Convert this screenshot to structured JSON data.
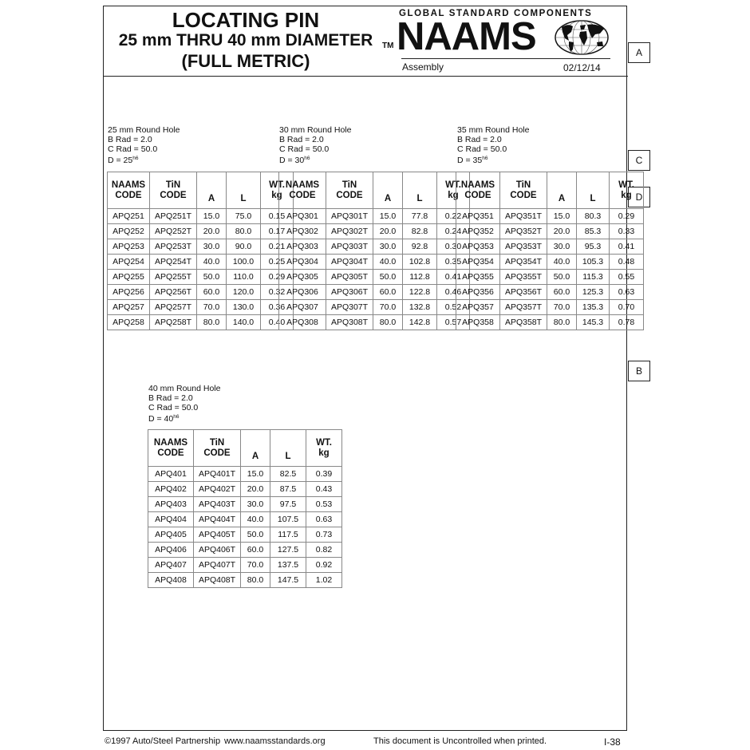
{
  "header": {
    "title_line1": "LOCATING PIN",
    "title_line2": "25 mm THRU 40 mm DIAMETER",
    "title_line3": "(FULL METRIC)",
    "trademark": "TM",
    "brand_tagline": "GLOBAL STANDARD COMPONENTS",
    "brand": "NAAMS",
    "category": "Assembly",
    "date": "02/12/14"
  },
  "side_tabs": {
    "a": "A",
    "c": "C",
    "d": "D",
    "b": "B"
  },
  "columns": [
    {
      "line1": "NAAMS",
      "line2": "CODE"
    },
    {
      "line1": "TiN",
      "line2": "CODE"
    },
    {
      "line1": "",
      "line2": "A"
    },
    {
      "line1": "",
      "line2": "L"
    },
    {
      "line1": "WT.",
      "line2": "kg"
    }
  ],
  "tables": [
    {
      "hole": "25 mm Round Hole",
      "b_rad": "B Rad = 2.0",
      "c_rad": "C Rad = 50.0",
      "d": "D = 25",
      "tol": "h6",
      "rows": [
        [
          "APQ251",
          "APQ251T",
          "15.0",
          "75.0",
          "0.15"
        ],
        [
          "APQ252",
          "APQ252T",
          "20.0",
          "80.0",
          "0.17"
        ],
        [
          "APQ253",
          "APQ253T",
          "30.0",
          "90.0",
          "0.21"
        ],
        [
          "APQ254",
          "APQ254T",
          "40.0",
          "100.0",
          "0.25"
        ],
        [
          "APQ255",
          "APQ255T",
          "50.0",
          "110.0",
          "0.29"
        ],
        [
          "APQ256",
          "APQ256T",
          "60.0",
          "120.0",
          "0.32"
        ],
        [
          "APQ257",
          "APQ257T",
          "70.0",
          "130.0",
          "0.36"
        ],
        [
          "APQ258",
          "APQ258T",
          "80.0",
          "140.0",
          "0.40"
        ]
      ]
    },
    {
      "hole": "30 mm Round Hole",
      "b_rad": "B Rad = 2.0",
      "c_rad": "C Rad = 50.0",
      "d": "D = 30",
      "tol": "h6",
      "rows": [
        [
          "APQ301",
          "APQ301T",
          "15.0",
          "77.8",
          "0.22"
        ],
        [
          "APQ302",
          "APQ302T",
          "20.0",
          "82.8",
          "0.24"
        ],
        [
          "APQ303",
          "APQ303T",
          "30.0",
          "92.8",
          "0.30"
        ],
        [
          "APQ304",
          "APQ304T",
          "40.0",
          "102.8",
          "0.35"
        ],
        [
          "APQ305",
          "APQ305T",
          "50.0",
          "112.8",
          "0.41"
        ],
        [
          "APQ306",
          "APQ306T",
          "60.0",
          "122.8",
          "0.46"
        ],
        [
          "APQ307",
          "APQ307T",
          "70.0",
          "132.8",
          "0.52"
        ],
        [
          "APQ308",
          "APQ308T",
          "80.0",
          "142.8",
          "0.57"
        ]
      ]
    },
    {
      "hole": "35 mm Round Hole",
      "b_rad": "B Rad = 2.0",
      "c_rad": "C Rad = 50.0",
      "d": "D = 35",
      "tol": "h6",
      "rows": [
        [
          "APQ351",
          "APQ351T",
          "15.0",
          "80.3",
          "0.29"
        ],
        [
          "APQ352",
          "APQ352T",
          "20.0",
          "85.3",
          "0.33"
        ],
        [
          "APQ353",
          "APQ353T",
          "30.0",
          "95.3",
          "0.41"
        ],
        [
          "APQ354",
          "APQ354T",
          "40.0",
          "105.3",
          "0.48"
        ],
        [
          "APQ355",
          "APQ355T",
          "50.0",
          "115.3",
          "0.55"
        ],
        [
          "APQ356",
          "APQ356T",
          "60.0",
          "125.3",
          "0.63"
        ],
        [
          "APQ357",
          "APQ357T",
          "70.0",
          "135.3",
          "0.70"
        ],
        [
          "APQ358",
          "APQ358T",
          "80.0",
          "145.3",
          "0.78"
        ]
      ]
    },
    {
      "hole": "40 mm Round Hole",
      "b_rad": "B Rad = 2.0",
      "c_rad": "C Rad = 50.0",
      "d": "D = 40",
      "tol": "h6",
      "rows": [
        [
          "APQ401",
          "APQ401T",
          "15.0",
          "82.5",
          "0.39"
        ],
        [
          "APQ402",
          "APQ402T",
          "20.0",
          "87.5",
          "0.43"
        ],
        [
          "APQ403",
          "APQ403T",
          "30.0",
          "97.5",
          "0.53"
        ],
        [
          "APQ404",
          "APQ404T",
          "40.0",
          "107.5",
          "0.63"
        ],
        [
          "APQ405",
          "APQ405T",
          "50.0",
          "117.5",
          "0.73"
        ],
        [
          "APQ406",
          "APQ406T",
          "60.0",
          "127.5",
          "0.82"
        ],
        [
          "APQ407",
          "APQ407T",
          "70.0",
          "137.5",
          "0.92"
        ],
        [
          "APQ408",
          "APQ408T",
          "80.0",
          "147.5",
          "1.02"
        ]
      ]
    }
  ],
  "footer": {
    "copyright": "©1997 Auto/Steel Partnership",
    "website": "www.naamsstandards.org",
    "notice": "This document is Uncontrolled when printed.",
    "page": "I-38"
  }
}
